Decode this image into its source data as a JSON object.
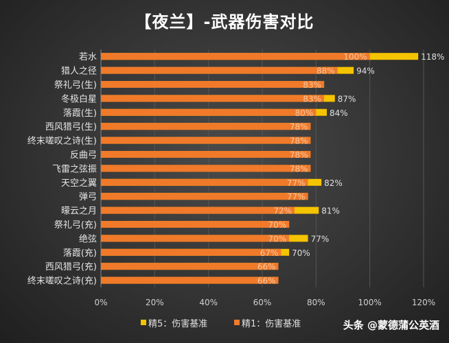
{
  "chart_data": {
    "type": "bar",
    "orientation": "horizontal",
    "title": "【夜兰】-武器伤害对比",
    "categories": [
      "若水",
      "猎人之径",
      "祭礼弓(生)",
      "冬极白星",
      "落霞(生)",
      "西风猎弓(生)",
      "终末嗟叹之诗(生)",
      "反曲弓",
      "飞雷之弦振",
      "天空之翼",
      "弹弓",
      "曚云之月",
      "祭礼弓(充)",
      "绝弦",
      "落霞(充)",
      "西风猎弓(充)",
      "终末嗟叹之诗(充)"
    ],
    "series": [
      {
        "name": "精5：伤害基准",
        "color": "#f5c400",
        "values": [
          118,
          94,
          83,
          87,
          84,
          78,
          78,
          78,
          78,
          82,
          77,
          81,
          70,
          77,
          70,
          66,
          66
        ]
      },
      {
        "name": "精1：伤害基准",
        "color": "#f07a2a",
        "values": [
          100,
          88,
          83,
          83,
          80,
          78,
          78,
          78,
          78,
          77,
          77,
          72,
          70,
          70,
          67,
          66,
          66
        ]
      }
    ],
    "xlim": [
      0,
      120
    ],
    "xticks": [
      "0%",
      "20%",
      "40%",
      "60%",
      "80%",
      "100%",
      "120%"
    ],
    "grid": true,
    "legend_position": "bottom"
  },
  "watermark": "头条 @蒙德蒲公英酒"
}
